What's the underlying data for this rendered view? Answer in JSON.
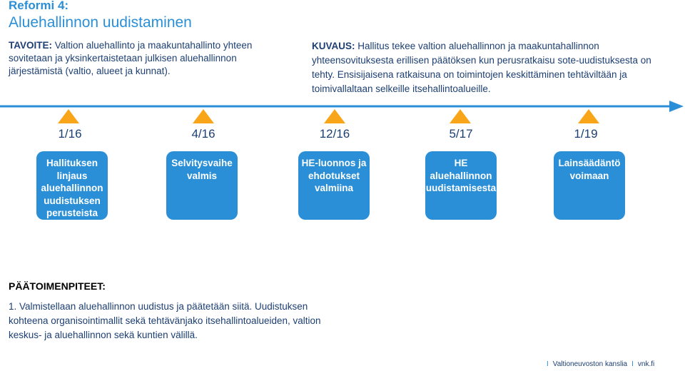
{
  "header": {
    "reform": "Reformi 4:",
    "title": "Aluehallinnon uudistaminen"
  },
  "goal": {
    "label": "TAVOITE:",
    "text": " Valtion aluehallinto ja maakuntahallinto yhteen sovitetaan ja yksinkertaistetaan julkisen aluehallinnon järjestämistä (valtio, alueet ja kunnat)."
  },
  "description": {
    "label": "KUVAUS:",
    "text": " Hallitus tekee valtion aluehallinnon ja maakuntahallinnon yhteensovituksesta erillisen päätöksen kun perusratkaisu sote-uudistuksesta on tehty. Ensisijaisena ratkaisuna on toimintojen keskittäminen tehtäviltään ja toimivallaltaan selkeille itsehallintoalueille."
  },
  "milestones": [
    {
      "date": "1/16",
      "label": "Hallituksen linjaus aluehallinnon uudistuksen perusteista"
    },
    {
      "date": "4/16",
      "label": "Selvitysvaihe valmis"
    },
    {
      "date": "12/16",
      "label": "HE-luonnos ja ehdotukset valmiina"
    },
    {
      "date": "5/17",
      "label": "HE aluehallinnon uudistamisesta"
    },
    {
      "date": "1/19",
      "label": "Lainsäädäntö voimaan"
    }
  ],
  "actions": {
    "title": "PÄÄTOIMENPITEET:",
    "text": "1. Valmistellaan aluehallinnon uudistus ja päätetään siitä. Uudistuksen kohteena organisointimallit sekä tehtävänjako itsehallintoalueiden, valtion keskus- ja aluehallinnon sekä kuntien välillä."
  },
  "footer": {
    "sep": "I",
    "org": "Valtioneuvoston kanslia",
    "site": "vnk.fi"
  },
  "colors": {
    "accent": "#2a8fd6",
    "marker": "#f9a51a",
    "text": "#1d3f73"
  }
}
